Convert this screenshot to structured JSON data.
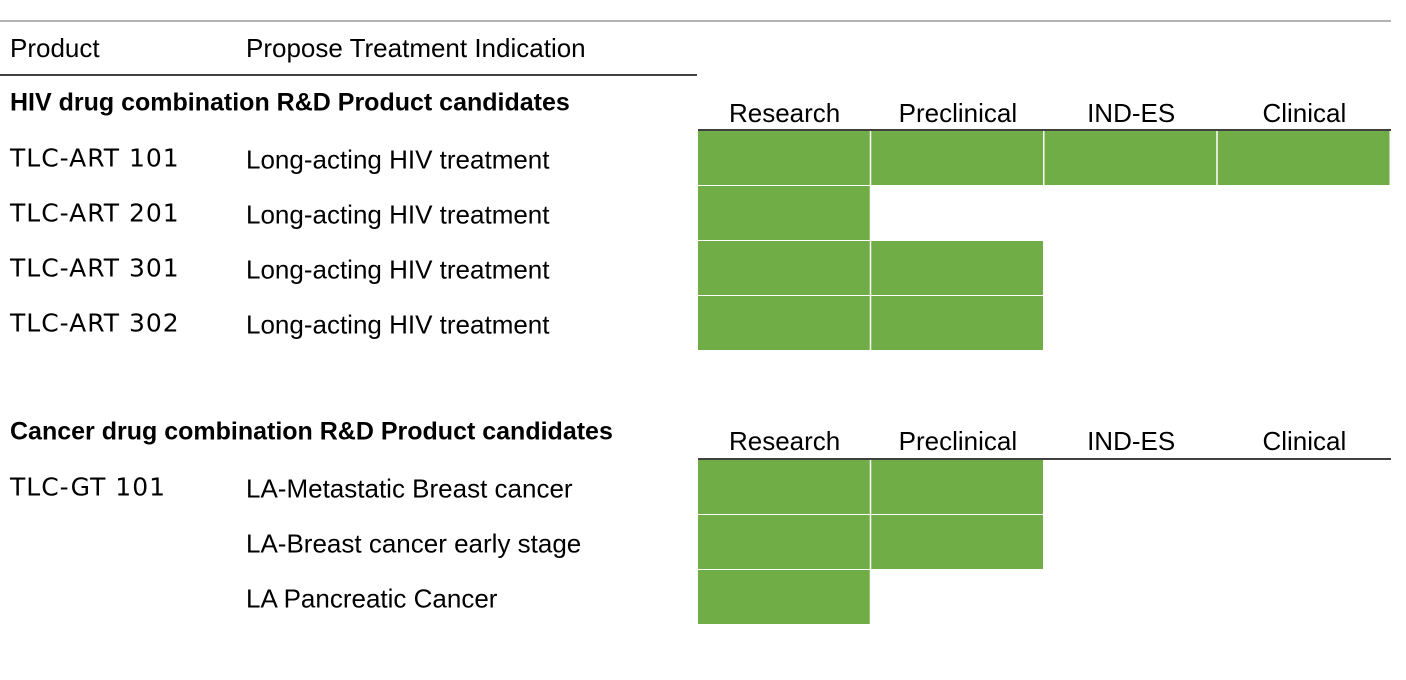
{
  "header": {
    "product": "Product",
    "indication": "Propose Treatment Indication"
  },
  "stages": [
    "Research",
    "Preclinical",
    "IND-ES",
    "Clinical"
  ],
  "sections": [
    {
      "title": "HIV drug combination R&D Product candidates",
      "rows": [
        {
          "product": "TLC-ART 101",
          "indication": "Long-acting HIV treatment",
          "progress": 4
        },
        {
          "product": "TLC-ART 201",
          "indication": "Long-acting HIV treatment",
          "progress": 1
        },
        {
          "product": "TLC-ART 301",
          "indication": "Long-acting HIV treatment",
          "progress": 2
        },
        {
          "product": "TLC-ART 302",
          "indication": "Long-acting HIV treatment",
          "progress": 2
        }
      ]
    },
    {
      "title": "Cancer drug combination R&D Product candidates",
      "rows": [
        {
          "product": "TLC-GT 101",
          "indication": "LA-Metastatic Breast cancer",
          "progress": 2
        },
        {
          "indication": "LA-Breast cancer early stage",
          "progress": 2
        },
        {
          "indication": "LA Pancreatic Cancer",
          "progress": 1
        }
      ]
    }
  ]
}
